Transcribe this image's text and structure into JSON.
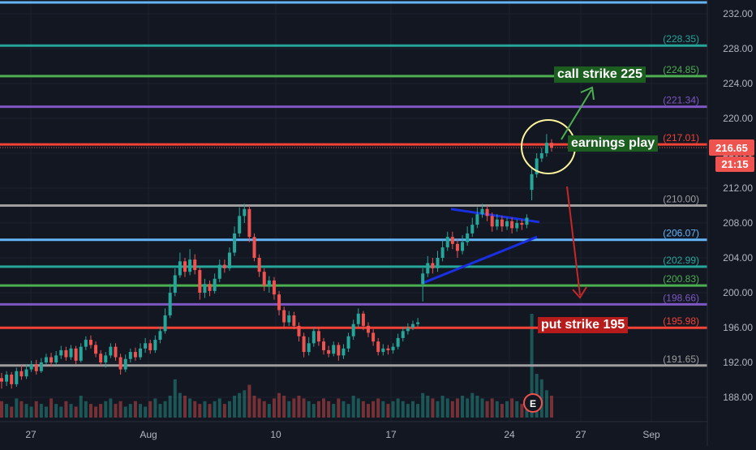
{
  "chart_data": {
    "type": "candlestick",
    "y_axis": {
      "ticks": [
        232,
        228,
        224,
        220,
        216,
        212,
        208,
        204,
        200,
        196,
        192,
        188
      ],
      "tick_labels": [
        "232.00",
        "228.00",
        "224.00",
        "220.00",
        "216.00",
        "212.00",
        "208.00",
        "204.00",
        "200.00",
        "196.00",
        "192.00",
        "188.00"
      ],
      "range": [
        185.5,
        233.6
      ]
    },
    "x_axis": {
      "tick_labels": [
        "27",
        "Aug",
        "10",
        "17",
        "24",
        "27",
        "Sep"
      ]
    },
    "last_price": {
      "value": "216.65",
      "countdown": "21:15",
      "color": "#ef5350"
    },
    "levels": [
      {
        "value": 233.3,
        "label": "",
        "color": "#64b5f6"
      },
      {
        "value": 228.35,
        "label": "(228.35)",
        "color": "#26a69a"
      },
      {
        "value": 224.85,
        "label": "(224.85)",
        "color": "#4caf50"
      },
      {
        "value": 221.34,
        "label": "(221.34)",
        "color": "#7e57c2"
      },
      {
        "value": 217.01,
        "label": "(217.01)",
        "color": "#f44336"
      },
      {
        "value": 210.0,
        "label": "(210.00)",
        "color": "#9e9e9e"
      },
      {
        "value": 206.07,
        "label": "(206.07)",
        "color": "#64b5f6"
      },
      {
        "value": 202.99,
        "label": "(202.99)",
        "color": "#26a69a"
      },
      {
        "value": 200.83,
        "label": "(200.83)",
        "color": "#4caf50"
      },
      {
        "value": 198.66,
        "label": "(198.66)",
        "color": "#7e57c2"
      },
      {
        "value": 195.98,
        "label": "(195.98)",
        "color": "#f44336"
      },
      {
        "value": 191.65,
        "label": "(191.65)",
        "color": "#9e9e9e"
      }
    ],
    "annotations": [
      {
        "id": "call",
        "text": "call strike 225",
        "bg": "#1b5e20"
      },
      {
        "id": "earnings",
        "text": "earnings play",
        "bg": "#1b5e20"
      },
      {
        "id": "put",
        "text": "put strike 195",
        "bg": "#b71c1c"
      }
    ],
    "earnings_marker": "E",
    "series": [
      {
        "name": "",
        "points": [
          [
            190.2,
            189.8,
            190.8,
            189.0
          ],
          [
            189.8,
            190.6,
            191.0,
            189.3
          ],
          [
            190.6,
            189.5,
            190.9,
            189.0
          ],
          [
            189.5,
            191.0,
            191.4,
            189.2
          ],
          [
            191.0,
            190.4,
            191.7,
            190.0
          ],
          [
            190.4,
            191.2,
            191.8,
            190.1
          ],
          [
            191.2,
            191.8,
            192.2,
            190.9
          ],
          [
            191.8,
            191.0,
            192.3,
            190.6
          ],
          [
            191.0,
            192.0,
            192.5,
            190.8
          ],
          [
            192.0,
            192.6,
            193.0,
            191.7
          ],
          [
            192.6,
            192.0,
            193.1,
            191.5
          ],
          [
            192.0,
            192.8,
            193.3,
            191.7
          ],
          [
            192.8,
            193.4,
            193.9,
            192.4
          ],
          [
            193.4,
            192.6,
            193.8,
            192.2
          ],
          [
            192.6,
            193.6,
            194.0,
            192.3
          ],
          [
            193.6,
            192.2,
            193.9,
            191.8
          ],
          [
            192.2,
            193.8,
            194.2,
            192.0
          ],
          [
            193.8,
            194.6,
            195.0,
            193.4
          ],
          [
            194.6,
            194.0,
            195.1,
            193.6
          ],
          [
            194.0,
            193.0,
            194.4,
            192.6
          ],
          [
            193.0,
            192.0,
            193.4,
            191.6
          ],
          [
            192.0,
            192.8,
            193.2,
            191.4
          ],
          [
            192.8,
            193.8,
            194.2,
            192.5
          ],
          [
            193.8,
            192.6,
            194.2,
            192.2
          ],
          [
            192.6,
            191.2,
            193.0,
            190.6
          ],
          [
            191.2,
            192.4,
            192.9,
            190.9
          ],
          [
            192.4,
            193.2,
            193.6,
            192.0
          ],
          [
            193.2,
            192.6,
            193.7,
            192.2
          ],
          [
            192.6,
            193.6,
            194.2,
            192.3
          ],
          [
            193.6,
            194.2,
            194.8,
            193.1
          ],
          [
            194.2,
            193.4,
            194.6,
            193.0
          ],
          [
            193.4,
            194.6,
            195.1,
            193.1
          ],
          [
            194.6,
            195.6,
            196.1,
            194.2
          ],
          [
            195.6,
            197.4,
            198.2,
            195.3
          ],
          [
            197.4,
            200.0,
            201.0,
            197.1
          ],
          [
            200.0,
            202.0,
            202.8,
            199.6
          ],
          [
            202.0,
            203.6,
            204.6,
            201.7
          ],
          [
            203.6,
            202.4,
            204.0,
            201.8
          ],
          [
            202.4,
            203.8,
            205.0,
            202.0
          ],
          [
            203.8,
            202.6,
            204.4,
            202.1
          ],
          [
            202.6,
            200.0,
            202.9,
            199.2
          ],
          [
            200.0,
            201.0,
            201.6,
            199.4
          ],
          [
            201.0,
            200.2,
            201.4,
            199.6
          ],
          [
            200.2,
            201.6,
            202.2,
            199.9
          ],
          [
            201.6,
            203.2,
            203.8,
            201.2
          ],
          [
            203.2,
            202.8,
            203.8,
            202.3
          ],
          [
            202.8,
            204.6,
            205.2,
            202.5
          ],
          [
            204.6,
            206.8,
            207.6,
            204.2
          ],
          [
            206.8,
            208.8,
            209.8,
            206.4
          ],
          [
            208.8,
            209.6,
            210.2,
            208.0
          ],
          [
            209.6,
            206.4,
            210.0,
            205.8
          ],
          [
            206.4,
            204.0,
            206.8,
            203.6
          ],
          [
            204.0,
            202.4,
            204.4,
            201.8
          ],
          [
            202.4,
            200.8,
            202.8,
            200.2
          ],
          [
            200.8,
            201.4,
            201.9,
            200.0
          ],
          [
            201.4,
            199.8,
            201.8,
            199.2
          ],
          [
            199.8,
            198.0,
            200.2,
            197.4
          ],
          [
            198.0,
            196.6,
            198.4,
            196.0
          ],
          [
            196.6,
            197.4,
            197.9,
            196.2
          ],
          [
            197.4,
            196.2,
            197.8,
            195.8
          ],
          [
            196.2,
            195.0,
            196.6,
            194.4
          ],
          [
            195.0,
            193.2,
            195.4,
            192.6
          ],
          [
            193.2,
            194.2,
            194.9,
            192.8
          ],
          [
            194.2,
            195.6,
            196.0,
            193.8
          ],
          [
            195.6,
            194.4,
            196.0,
            193.9
          ],
          [
            194.4,
            193.4,
            194.8,
            192.9
          ],
          [
            193.4,
            193.0,
            193.9,
            192.6
          ],
          [
            193.0,
            194.0,
            194.4,
            192.7
          ],
          [
            194.0,
            192.8,
            194.3,
            192.2
          ],
          [
            192.8,
            193.6,
            194.1,
            192.4
          ],
          [
            193.6,
            195.0,
            195.4,
            193.2
          ],
          [
            195.0,
            196.4,
            196.9,
            194.6
          ],
          [
            196.4,
            197.6,
            198.2,
            196.0
          ],
          [
            197.6,
            196.2,
            197.9,
            195.7
          ],
          [
            196.2,
            195.4,
            196.6,
            194.9
          ],
          [
            195.4,
            194.4,
            195.8,
            193.9
          ],
          [
            194.4,
            193.2,
            194.8,
            192.8
          ],
          [
            193.2,
            193.6,
            194.1,
            192.8
          ],
          [
            193.6,
            193.4,
            194.0,
            192.9
          ],
          [
            193.4,
            193.8,
            194.2,
            193.0
          ],
          [
            193.8,
            194.8,
            195.3,
            193.5
          ],
          [
            194.8,
            195.6,
            196.1,
            194.4
          ],
          [
            195.6,
            196.0,
            196.5,
            195.2
          ],
          [
            196.0,
            196.4,
            196.8,
            195.7
          ],
          [
            196.4,
            196.6,
            197.1,
            196.1
          ],
          [
            201.0,
            202.2,
            202.8,
            199.0
          ],
          [
            202.2,
            203.4,
            204.2,
            201.8
          ],
          [
            203.4,
            202.8,
            204.0,
            202.2
          ],
          [
            202.8,
            204.0,
            204.8,
            202.4
          ],
          [
            204.0,
            205.2,
            206.0,
            203.6
          ],
          [
            205.2,
            206.4,
            207.0,
            204.8
          ],
          [
            206.4,
            205.6,
            207.0,
            205.0
          ],
          [
            205.6,
            204.8,
            206.2,
            204.0
          ],
          [
            204.8,
            205.8,
            206.6,
            204.4
          ],
          [
            205.8,
            206.8,
            207.6,
            205.4
          ],
          [
            206.8,
            207.8,
            208.6,
            206.4
          ],
          [
            207.8,
            209.0,
            209.8,
            207.4
          ],
          [
            209.0,
            209.6,
            210.2,
            208.6
          ],
          [
            209.6,
            208.8,
            210.0,
            208.2
          ],
          [
            208.8,
            207.6,
            209.2,
            207.0
          ],
          [
            207.6,
            208.4,
            209.0,
            207.2
          ],
          [
            208.4,
            207.6,
            208.8,
            207.0
          ],
          [
            207.6,
            208.2,
            208.6,
            207.2
          ],
          [
            208.2,
            207.4,
            208.6,
            206.8
          ],
          [
            207.4,
            208.0,
            208.4,
            207.0
          ],
          [
            208.0,
            207.8,
            208.4,
            207.2
          ],
          [
            207.8,
            208.6,
            209.0,
            207.4
          ],
          [
            211.8,
            213.6,
            214.4,
            210.6
          ],
          [
            213.6,
            215.4,
            216.0,
            213.2
          ],
          [
            215.4,
            216.0,
            216.6,
            215.0
          ],
          [
            216.0,
            217.2,
            218.2,
            215.6
          ],
          [
            217.2,
            216.65,
            217.6,
            216.2
          ]
        ]
      }
    ],
    "volume": [
      6,
      5,
      4,
      7,
      6,
      5,
      4,
      6,
      5,
      4,
      7,
      5,
      4,
      6,
      5,
      4,
      8,
      6,
      5,
      4,
      5,
      6,
      7,
      5,
      6,
      4,
      5,
      6,
      5,
      4,
      6,
      7,
      5,
      6,
      8,
      14,
      9,
      8,
      7,
      6,
      5,
      6,
      5,
      6,
      7,
      5,
      6,
      8,
      9,
      10,
      12,
      8,
      7,
      6,
      5,
      7,
      9,
      8,
      6,
      7,
      8,
      7,
      6,
      5,
      6,
      7,
      6,
      5,
      7,
      6,
      5,
      8,
      7,
      6,
      5,
      6,
      7,
      6,
      5,
      6,
      7,
      6,
      5,
      6,
      5,
      9,
      8,
      7,
      6,
      8,
      7,
      6,
      7,
      8,
      7,
      9,
      8,
      7,
      6,
      7,
      6,
      5,
      6,
      7,
      6,
      5,
      6,
      38,
      16,
      14,
      10,
      8
    ],
    "volume_max": 38
  }
}
